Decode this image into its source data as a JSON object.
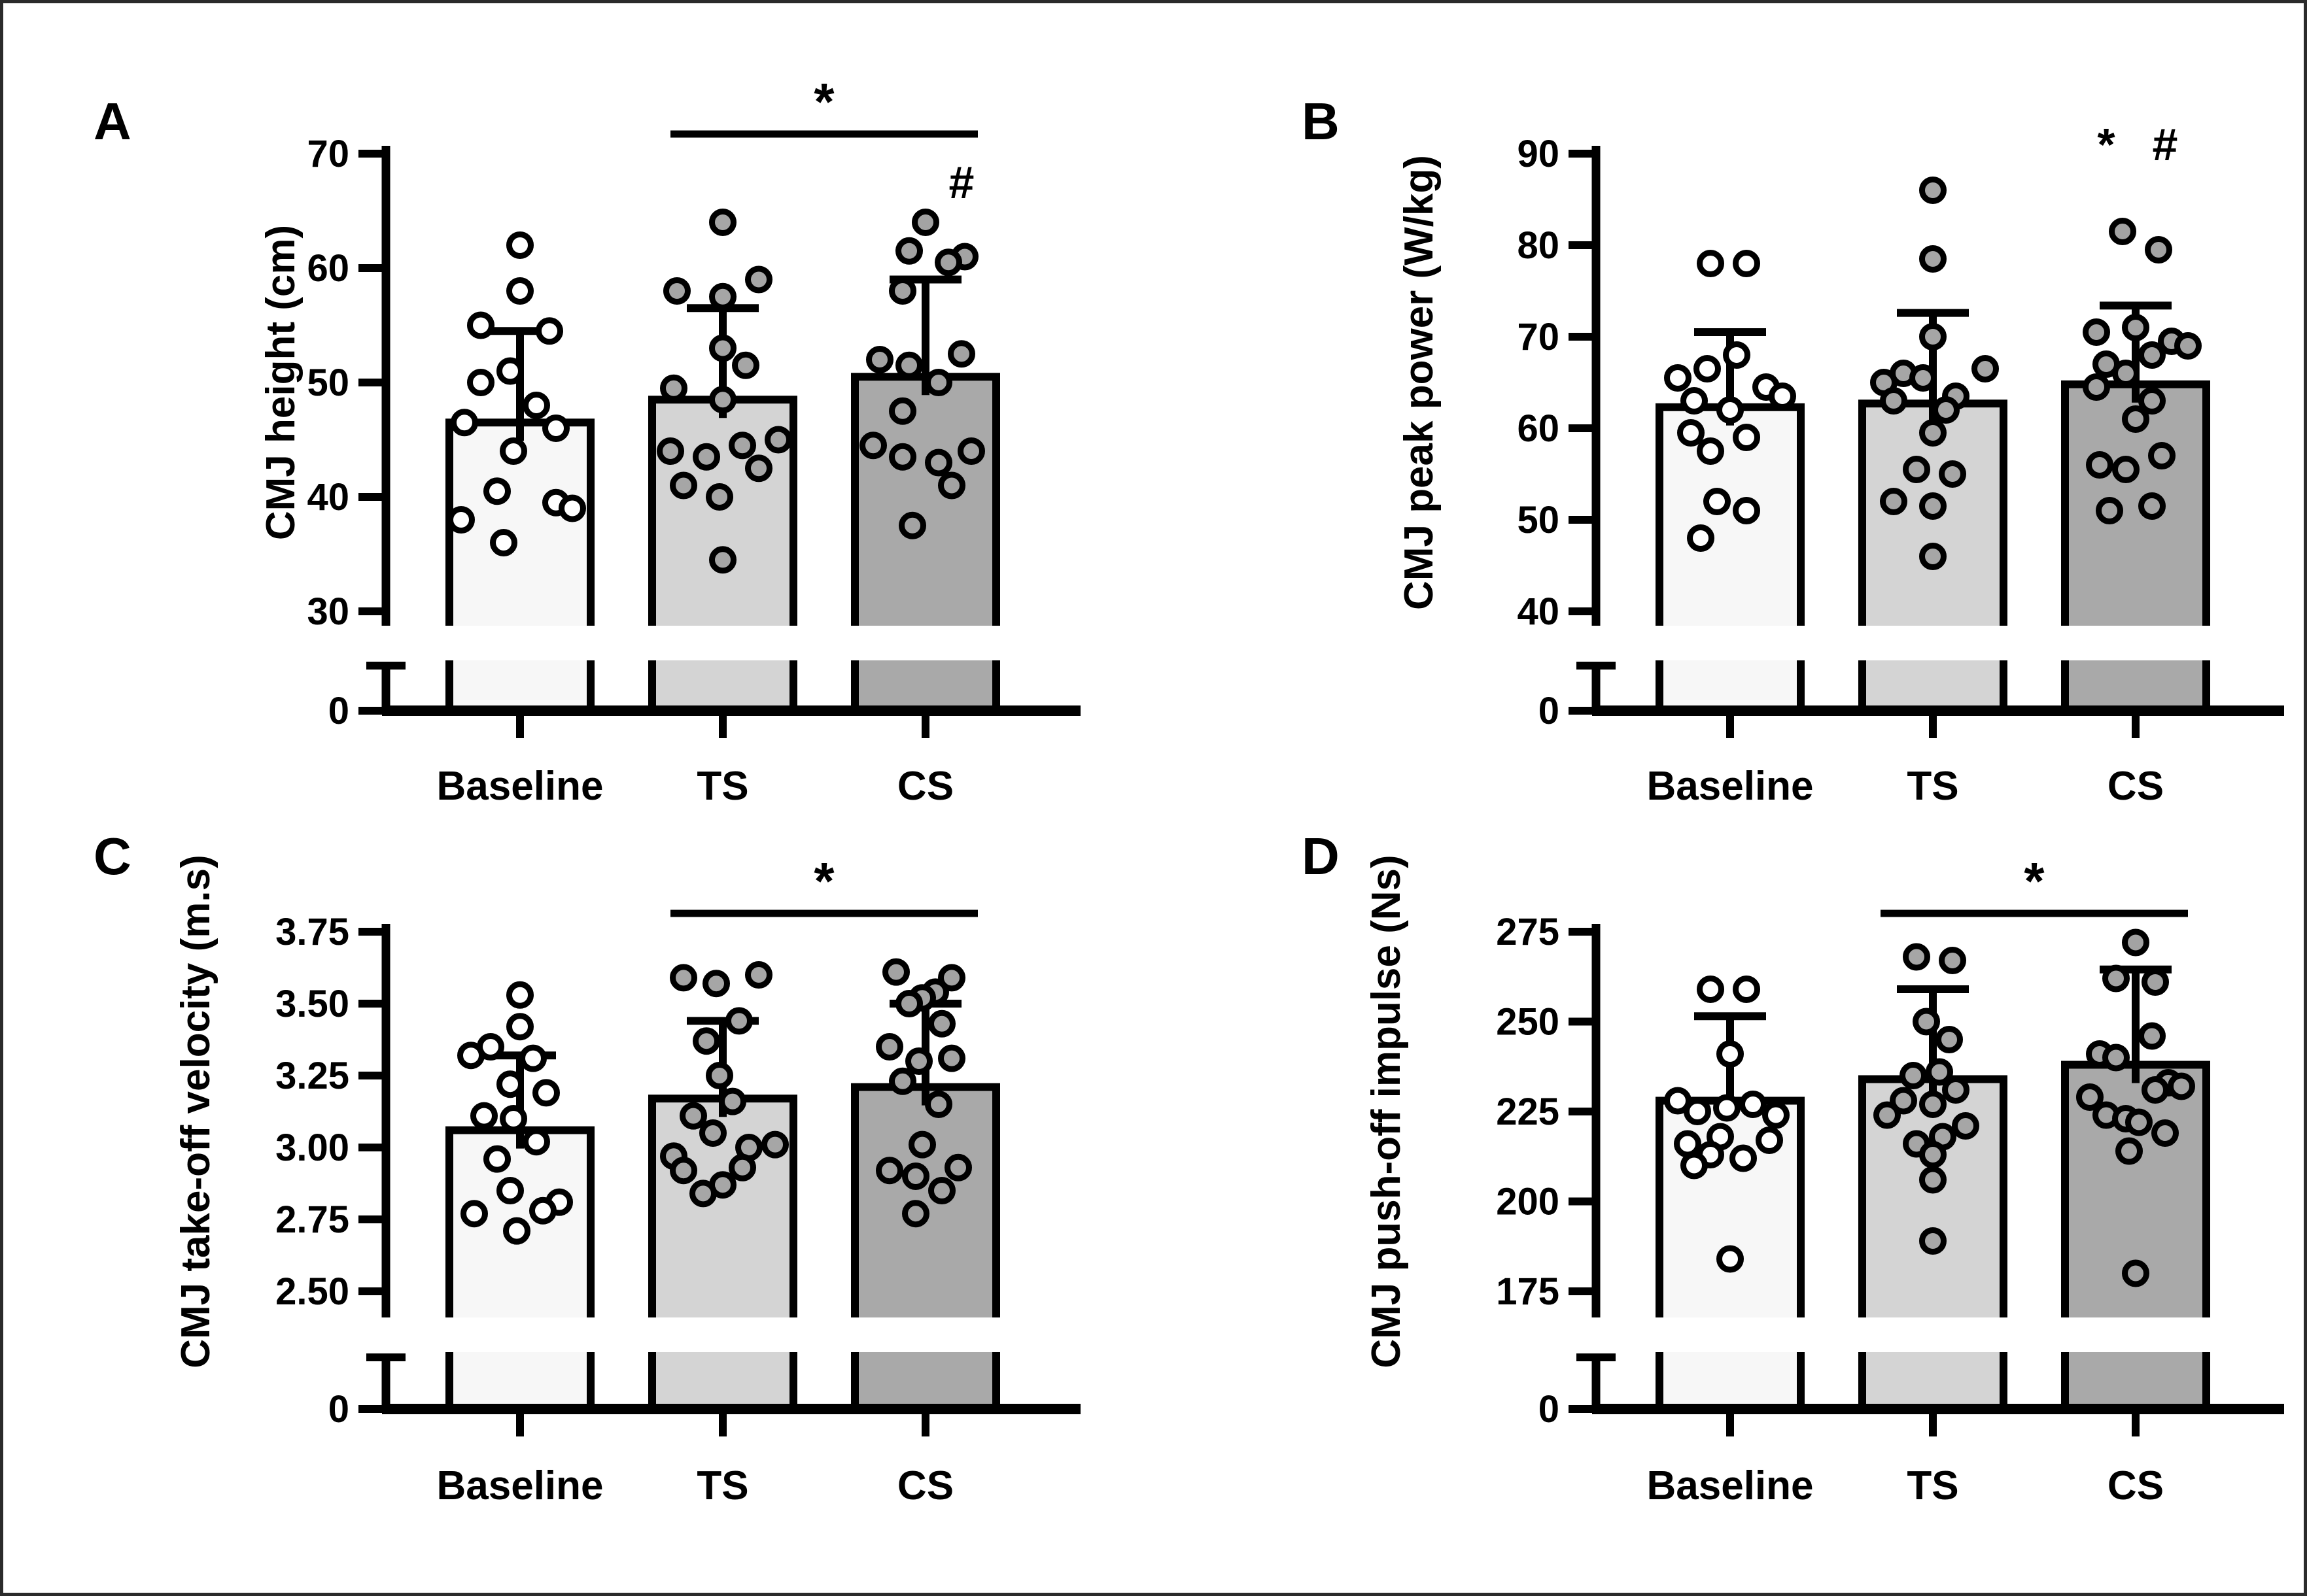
{
  "figure": {
    "background": "#ffffff",
    "border_color": "#2b2b2b",
    "description": "Four-panel bar chart of countermovement jump (CMJ) outcomes at Baseline, TS and CS with individual data points, SD error bars and significance markers"
  },
  "styles": {
    "ink": "#000000",
    "bar_fills": [
      "#f7f7f7",
      "#d4d4d4",
      "#a9a9a9"
    ],
    "dot_fills": [
      "#ffffff",
      "#a6a6a6",
      "#a3a3a3"
    ],
    "band_fill": "#ffffff"
  },
  "chart_data": [
    {
      "panel": "A",
      "type": "bar",
      "ylabel": "CMJ height (cm)",
      "categories": [
        "Baseline",
        "TS",
        "CS"
      ],
      "values": [
        46.5,
        48.5,
        50.5
      ],
      "error_top": [
        54.5,
        56.5,
        59.0
      ],
      "yticks": [
        "70",
        "60",
        "50",
        "40",
        "30"
      ],
      "zero_label": "0",
      "axis_break": true,
      "legend": "none",
      "grid": false,
      "annotations": [
        {
          "kind": "bracket",
          "from": "TS",
          "to": "CS",
          "label": "*"
        },
        {
          "kind": "symbol",
          "over": "CS",
          "label": "#",
          "dx": 55
        }
      ],
      "points": {
        "Baseline": [
          [
            62,
            0
          ],
          [
            58,
            0
          ],
          [
            55,
            -60
          ],
          [
            54.5,
            45
          ],
          [
            51,
            -15
          ],
          [
            50,
            -60
          ],
          [
            48,
            25
          ],
          [
            46.5,
            -85
          ],
          [
            46,
            55
          ],
          [
            44,
            -10
          ],
          [
            40.5,
            -35
          ],
          [
            39.5,
            55
          ],
          [
            39,
            80
          ],
          [
            38,
            -90
          ],
          [
            36,
            -25
          ]
        ],
        "TS": [
          [
            64,
            0
          ],
          [
            59,
            55
          ],
          [
            58,
            -70
          ],
          [
            57.5,
            0
          ],
          [
            53,
            0
          ],
          [
            51.5,
            35
          ],
          [
            49.5,
            -75
          ],
          [
            48.5,
            0
          ],
          [
            45,
            85
          ],
          [
            44.5,
            30
          ],
          [
            44,
            -80
          ],
          [
            43.5,
            -25
          ],
          [
            42.5,
            55
          ],
          [
            41,
            -60
          ],
          [
            40,
            -5
          ],
          [
            34.5,
            0
          ]
        ],
        "CS": [
          [
            64,
            0
          ],
          [
            61.5,
            -25
          ],
          [
            61,
            60
          ],
          [
            60.5,
            35
          ],
          [
            58,
            -35
          ],
          [
            52.5,
            55
          ],
          [
            52,
            -70
          ],
          [
            51.5,
            -25
          ],
          [
            50,
            20
          ],
          [
            47.5,
            -35
          ],
          [
            44.5,
            -80
          ],
          [
            44,
            70
          ],
          [
            43.5,
            -35
          ],
          [
            43,
            20
          ],
          [
            41,
            40
          ],
          [
            37.5,
            -20
          ]
        ]
      }
    },
    {
      "panel": "B",
      "type": "bar",
      "ylabel": "CMJ peak power (W/kg)",
      "categories": [
        "Baseline",
        "TS",
        "CS"
      ],
      "values": [
        62.3,
        62.7,
        64.8
      ],
      "error_top": [
        70.5,
        72.6,
        73.4
      ],
      "yticks": [
        "90",
        "80",
        "70",
        "60",
        "50",
        "40"
      ],
      "zero_label": "0",
      "axis_break": true,
      "legend": "none",
      "grid": false,
      "annotations": [
        {
          "kind": "symbol",
          "over": "CS",
          "label": "*",
          "dx": -45
        },
        {
          "kind": "symbol",
          "over": "CS",
          "label": "#",
          "dx": 45
        }
      ],
      "points": {
        "Baseline": [
          [
            78,
            -30
          ],
          [
            78,
            25
          ],
          [
            68,
            10
          ],
          [
            66.5,
            -35
          ],
          [
            65.5,
            -80
          ],
          [
            64.5,
            55
          ],
          [
            63.5,
            80
          ],
          [
            63,
            -55
          ],
          [
            62,
            0
          ],
          [
            59.5,
            -60
          ],
          [
            59,
            25
          ],
          [
            57.5,
            -30
          ],
          [
            52,
            -20
          ],
          [
            51,
            25
          ],
          [
            48,
            -45
          ]
        ],
        "TS": [
          [
            86,
            0
          ],
          [
            78.5,
            0
          ],
          [
            70,
            0
          ],
          [
            66.5,
            80
          ],
          [
            66,
            -45
          ],
          [
            65.5,
            -15
          ],
          [
            65,
            -75
          ],
          [
            63.5,
            35
          ],
          [
            63,
            -60
          ],
          [
            62,
            20
          ],
          [
            59.5,
            0
          ],
          [
            55.5,
            -25
          ],
          [
            55,
            30
          ],
          [
            52,
            -60
          ],
          [
            51.5,
            0
          ],
          [
            46,
            0
          ]
        ],
        "CS": [
          [
            81.5,
            -20
          ],
          [
            79.5,
            35
          ],
          [
            71,
            0
          ],
          [
            70.5,
            -60
          ],
          [
            69.5,
            55
          ],
          [
            69,
            80
          ],
          [
            68,
            25
          ],
          [
            67,
            -45
          ],
          [
            66,
            -15
          ],
          [
            64.5,
            -60
          ],
          [
            63,
            25
          ],
          [
            61,
            0
          ],
          [
            57,
            40
          ],
          [
            56,
            -55
          ],
          [
            55.5,
            -15
          ],
          [
            51.5,
            25
          ],
          [
            51,
            -40
          ]
        ]
      }
    },
    {
      "panel": "C",
      "type": "bar",
      "ylabel": "CMJ take-off velocity (m.s)",
      "categories": [
        "Baseline",
        "TS",
        "CS"
      ],
      "values": [
        3.06,
        3.17,
        3.21
      ],
      "error_top": [
        3.32,
        3.44,
        3.5
      ],
      "yticks": [
        "3.75",
        "3.50",
        "3.25",
        "3.00",
        "2.75",
        "2.50"
      ],
      "zero_label": "0",
      "axis_break": true,
      "legend": "none",
      "grid": false,
      "annotations": [
        {
          "kind": "bracket",
          "from": "TS",
          "to": "CS",
          "label": "*"
        }
      ],
      "points": {
        "Baseline": [
          [
            3.53,
            0
          ],
          [
            3.42,
            0
          ],
          [
            3.35,
            -45
          ],
          [
            3.32,
            -75
          ],
          [
            3.31,
            20
          ],
          [
            3.22,
            -15
          ],
          [
            3.19,
            40
          ],
          [
            3.11,
            -55
          ],
          [
            3.1,
            -10
          ],
          [
            3.02,
            25
          ],
          [
            2.96,
            -35
          ],
          [
            2.85,
            -15
          ],
          [
            2.81,
            60
          ],
          [
            2.78,
            35
          ],
          [
            2.77,
            -70
          ],
          [
            2.71,
            -5
          ]
        ],
        "TS": [
          [
            3.6,
            55
          ],
          [
            3.59,
            -60
          ],
          [
            3.57,
            -10
          ],
          [
            3.44,
            25
          ],
          [
            3.37,
            -25
          ],
          [
            3.25,
            -5
          ],
          [
            3.16,
            15
          ],
          [
            3.11,
            -45
          ],
          [
            3.05,
            -15
          ],
          [
            3.01,
            80
          ],
          [
            3.0,
            40
          ],
          [
            2.97,
            -75
          ],
          [
            2.93,
            30
          ],
          [
            2.92,
            -60
          ],
          [
            2.87,
            0
          ],
          [
            2.84,
            -30
          ]
        ],
        "CS": [
          [
            3.61,
            -45
          ],
          [
            3.59,
            40
          ],
          [
            3.54,
            15
          ],
          [
            3.52,
            -5
          ],
          [
            3.5,
            -25
          ],
          [
            3.43,
            25
          ],
          [
            3.35,
            -55
          ],
          [
            3.31,
            40
          ],
          [
            3.3,
            -10
          ],
          [
            3.23,
            -35
          ],
          [
            3.15,
            20
          ],
          [
            3.01,
            -5
          ],
          [
            2.93,
            50
          ],
          [
            2.92,
            -55
          ],
          [
            2.9,
            -15
          ],
          [
            2.85,
            25
          ],
          [
            2.77,
            -15
          ]
        ]
      }
    },
    {
      "panel": "D",
      "type": "bar",
      "ylabel": "CMJ push-off impulse (Ns)",
      "categories": [
        "Baseline",
        "TS",
        "CS"
      ],
      "values": [
        228,
        234,
        238
      ],
      "error_top": [
        251.5,
        259,
        264.5
      ],
      "yticks": [
        "275",
        "250",
        "225",
        "200",
        "175"
      ],
      "zero_label": "0",
      "axis_break": true,
      "legend": "none",
      "grid": false,
      "annotations": [
        {
          "kind": "bracket",
          "from": "TS",
          "to": "CS",
          "label": "*"
        }
      ],
      "points": {
        "Baseline": [
          [
            259,
            -30
          ],
          [
            259,
            25
          ],
          [
            241,
            0
          ],
          [
            228,
            -80
          ],
          [
            227,
            35
          ],
          [
            226,
            -5
          ],
          [
            225,
            -50
          ],
          [
            224,
            70
          ],
          [
            218,
            -15
          ],
          [
            217,
            60
          ],
          [
            216,
            -65
          ],
          [
            213,
            -30
          ],
          [
            212,
            20
          ],
          [
            210,
            -55
          ],
          [
            184,
            0
          ]
        ],
        "TS": [
          [
            268,
            -25
          ],
          [
            267,
            30
          ],
          [
            250,
            -10
          ],
          [
            245,
            25
          ],
          [
            236,
            10
          ],
          [
            235,
            -30
          ],
          [
            231,
            35
          ],
          [
            228,
            -45
          ],
          [
            227,
            0
          ],
          [
            224,
            -70
          ],
          [
            221,
            50
          ],
          [
            218,
            15
          ],
          [
            216,
            -25
          ],
          [
            213,
            0
          ],
          [
            206,
            0
          ],
          [
            189,
            0
          ]
        ],
        "CS": [
          [
            272,
            0
          ],
          [
            262,
            -30
          ],
          [
            261,
            30
          ],
          [
            246,
            25
          ],
          [
            241,
            -55
          ],
          [
            240,
            -30
          ],
          [
            233,
            50
          ],
          [
            232,
            70
          ],
          [
            231,
            30
          ],
          [
            229,
            -70
          ],
          [
            224,
            -45
          ],
          [
            223,
            -15
          ],
          [
            222,
            5
          ],
          [
            219,
            45
          ],
          [
            214,
            -10
          ],
          [
            180,
            0
          ]
        ]
      }
    }
  ]
}
